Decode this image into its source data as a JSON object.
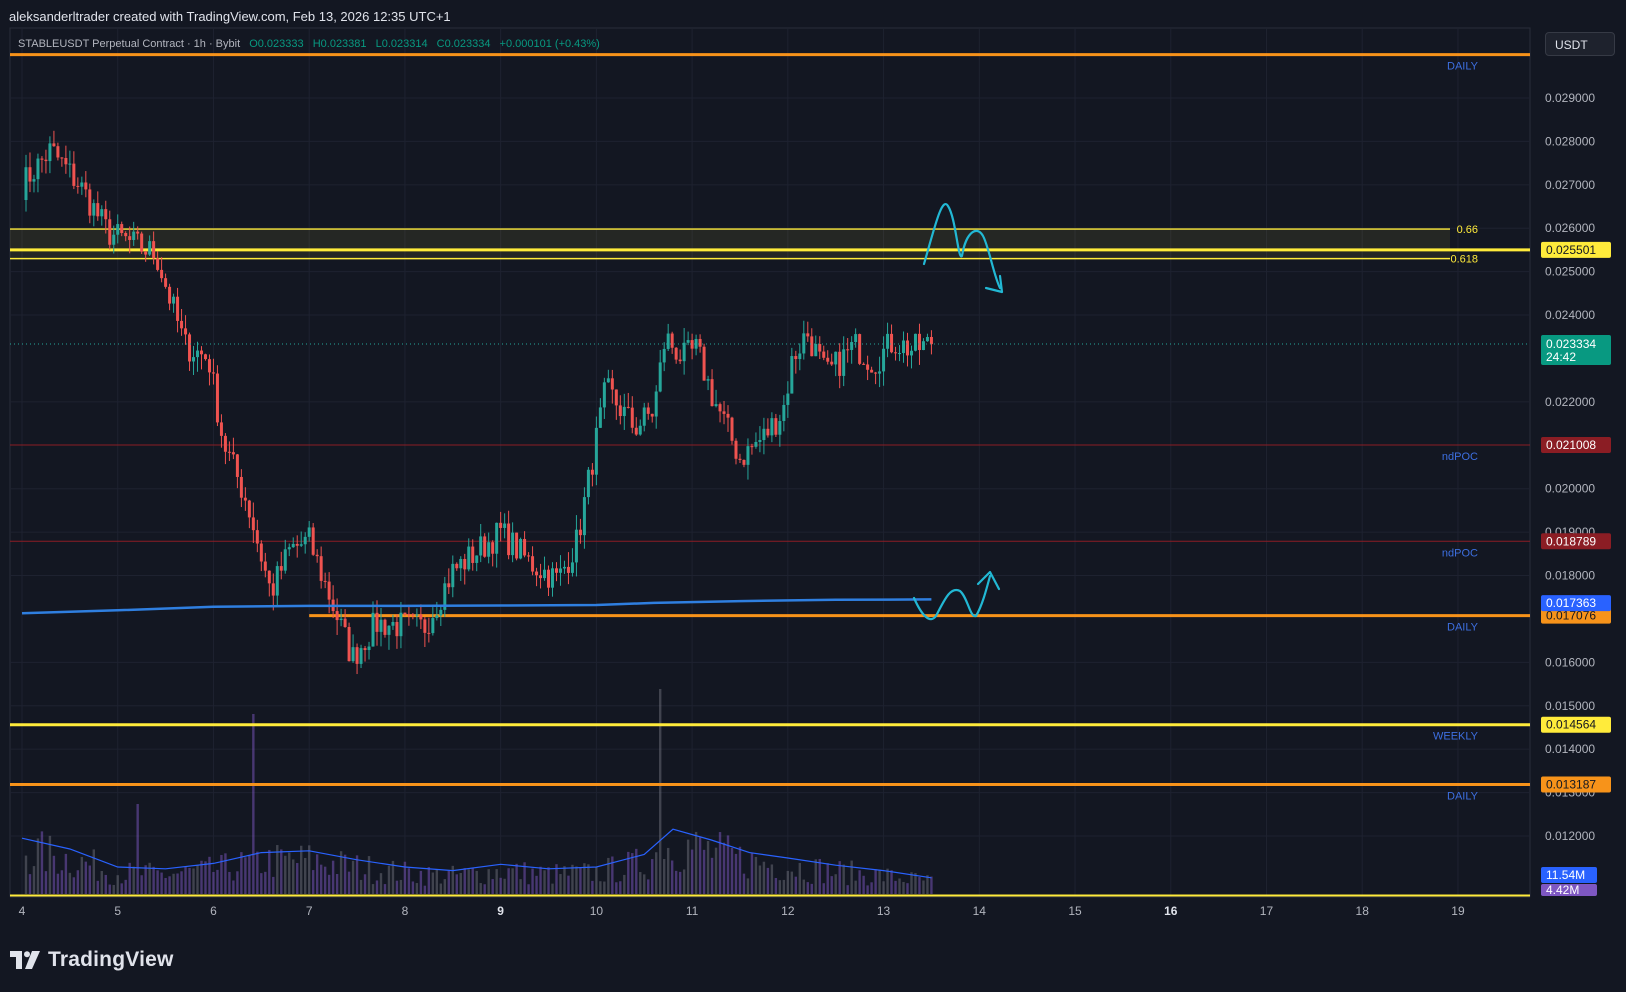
{
  "credit": "aleksanderltrader created with TradingView.com, Feb 13, 2026 12:35 UTC+1",
  "header": {
    "symbol": "STABLEUSDT Perpetual Contract · 1h · Bybit",
    "open": "O0.023333",
    "high": "H0.023381",
    "low": "L0.023314",
    "close": "C0.023334",
    "change": "+0.000101 (+0.43%)"
  },
  "currency_button": "USDT",
  "brand": "TradingView",
  "colors": {
    "background": "#131722",
    "up": "#26a69a",
    "down": "#ef5350",
    "daily": "#f7931a",
    "yellow": "#ffeb3b",
    "poc": "#8b1d24",
    "ma": "#2f7fe0",
    "annotation": "#22b8d4",
    "label_blue": "#3d6fe0"
  },
  "chart_data": {
    "type": "candlestick",
    "timeframe": "1h",
    "title": "STABLEUSDT Perpetual Contract · 1h · Bybit",
    "x_tick_labels": [
      "4",
      "5",
      "6",
      "7",
      "8",
      "9",
      "10",
      "11",
      "12",
      "13",
      "14",
      "15",
      "16",
      "17",
      "18",
      "19"
    ],
    "bold_x_ticks": [
      "9",
      "16"
    ],
    "y_tick_labels": [
      "0.029000",
      "0.028000",
      "0.027000",
      "0.026000",
      "0.025000",
      "0.024000",
      "0.022000",
      "0.020000",
      "0.019000",
      "0.018000",
      "0.016000",
      "0.015000",
      "0.014000",
      "0.013000",
      "0.012000"
    ],
    "y_range": [
      0.0105,
      0.0305
    ],
    "last_price": "0.023334",
    "countdown": "24:42",
    "price_path_anchors": [
      {
        "day": 4.0,
        "price": 0.027
      },
      {
        "day": 4.3,
        "price": 0.0278
      },
      {
        "day": 4.6,
        "price": 0.027
      },
      {
        "day": 4.9,
        "price": 0.0259
      },
      {
        "day": 5.4,
        "price": 0.0254
      },
      {
        "day": 5.7,
        "price": 0.0233
      },
      {
        "day": 5.95,
        "price": 0.023
      },
      {
        "day": 6.1,
        "price": 0.0211
      },
      {
        "day": 6.35,
        "price": 0.0197
      },
      {
        "day": 6.6,
        "price": 0.0176
      },
      {
        "day": 6.8,
        "price": 0.0186
      },
      {
        "day": 7.0,
        "price": 0.0188
      },
      {
        "day": 7.1,
        "price": 0.0182
      },
      {
        "day": 7.45,
        "price": 0.0161
      },
      {
        "day": 7.7,
        "price": 0.0169
      },
      {
        "day": 8.2,
        "price": 0.0168
      },
      {
        "day": 8.5,
        "price": 0.0181
      },
      {
        "day": 9.0,
        "price": 0.019
      },
      {
        "day": 9.3,
        "price": 0.0183
      },
      {
        "day": 9.6,
        "price": 0.0179
      },
      {
        "day": 9.8,
        "price": 0.0188
      },
      {
        "day": 10.1,
        "price": 0.0223
      },
      {
        "day": 10.4,
        "price": 0.0214
      },
      {
        "day": 10.6,
        "price": 0.0218
      },
      {
        "day": 10.72,
        "price": 0.0235
      },
      {
        "day": 10.9,
        "price": 0.023
      },
      {
        "day": 11.05,
        "price": 0.0232
      },
      {
        "day": 11.2,
        "price": 0.0222
      },
      {
        "day": 11.5,
        "price": 0.0207
      },
      {
        "day": 11.75,
        "price": 0.0212
      },
      {
        "day": 11.95,
        "price": 0.0218
      },
      {
        "day": 12.05,
        "price": 0.023
      },
      {
        "day": 12.2,
        "price": 0.0236
      },
      {
        "day": 12.4,
        "price": 0.0226
      },
      {
        "day": 12.7,
        "price": 0.0233
      },
      {
        "day": 12.9,
        "price": 0.0229
      },
      {
        "day": 13.1,
        "price": 0.0234
      },
      {
        "day": 13.3,
        "price": 0.0232
      },
      {
        "day": 13.5,
        "price": 0.02333
      }
    ],
    "moving_average": {
      "color": "#2f7fe0",
      "points": [
        {
          "day": 4.0,
          "price": 0.01713
        },
        {
          "day": 5.0,
          "price": 0.0172
        },
        {
          "day": 6.0,
          "price": 0.01728
        },
        {
          "day": 7.0,
          "price": 0.0173
        },
        {
          "day": 8.0,
          "price": 0.0173
        },
        {
          "day": 9.0,
          "price": 0.01731
        },
        {
          "day": 10.0,
          "price": 0.01732
        },
        {
          "day": 10.6,
          "price": 0.01737
        },
        {
          "day": 11.5,
          "price": 0.01741
        },
        {
          "day": 12.5,
          "price": 0.01744
        },
        {
          "day": 13.5,
          "price": 0.01745
        }
      ]
    },
    "volume_ma_anchors": [
      {
        "day": 4.0,
        "value": 0.62
      },
      {
        "day": 4.5,
        "value": 0.5
      },
      {
        "day": 5.0,
        "value": 0.3
      },
      {
        "day": 5.5,
        "value": 0.28
      },
      {
        "day": 6.0,
        "value": 0.34
      },
      {
        "day": 6.5,
        "value": 0.46
      },
      {
        "day": 7.0,
        "value": 0.48
      },
      {
        "day": 7.5,
        "value": 0.38
      },
      {
        "day": 8.0,
        "value": 0.3
      },
      {
        "day": 8.5,
        "value": 0.26
      },
      {
        "day": 9.0,
        "value": 0.33
      },
      {
        "day": 9.5,
        "value": 0.28
      },
      {
        "day": 10.0,
        "value": 0.3
      },
      {
        "day": 10.5,
        "value": 0.44
      },
      {
        "day": 10.8,
        "value": 0.72
      },
      {
        "day": 11.2,
        "value": 0.6
      },
      {
        "day": 11.6,
        "value": 0.46
      },
      {
        "day": 12.0,
        "value": 0.4
      },
      {
        "day": 12.5,
        "value": 0.32
      },
      {
        "day": 13.0,
        "value": 0.26
      },
      {
        "day": 13.5,
        "value": 0.18
      }
    ],
    "levels": [
      {
        "price": 0.03,
        "label": "DAILY",
        "kind": "daily"
      },
      {
        "price": 0.02598,
        "label": "0.66",
        "kind": "fib"
      },
      {
        "price": 0.025501,
        "price_tag": "0.025501",
        "kind": "yellow"
      },
      {
        "price": 0.0253,
        "label": "0.618",
        "kind": "fib"
      },
      {
        "price": 0.021008,
        "price_tag": "0.021008",
        "label": "ndPOC",
        "kind": "poc"
      },
      {
        "price": 0.018789,
        "price_tag": "0.018789",
        "label": "ndPOC",
        "kind": "poc"
      },
      {
        "price": 0.017076,
        "price_tag": "0.017076",
        "label": "DAILY",
        "kind": "daily"
      },
      {
        "price": 0.014564,
        "price_tag": "0.014564",
        "label": "WEEKLY",
        "kind": "yellow"
      },
      {
        "price": 0.013187,
        "price_tag": "0.013187",
        "label": "DAILY",
        "kind": "daily"
      }
    ],
    "ma_tag": "0.017363",
    "volume_tags": [
      "11.54M",
      "4.42M"
    ]
  }
}
